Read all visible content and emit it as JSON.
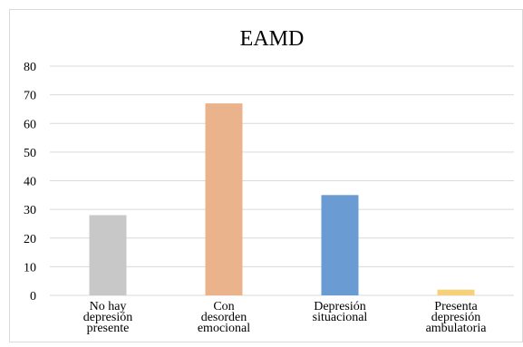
{
  "chart_data": {
    "type": "bar",
    "title": "EAMD",
    "xlabel": "",
    "ylabel": "",
    "categories": [
      [
        "No hay",
        "depresión",
        "presente"
      ],
      [
        "Con",
        "desorden",
        "emocional"
      ],
      [
        "Depresión",
        "situacional"
      ],
      [
        "Presenta",
        "depresión",
        "ambulatoria"
      ]
    ],
    "values": [
      28,
      67,
      35,
      2
    ],
    "colors": [
      "#c8c8c8",
      "#ebb38b",
      "#6a9bd3",
      "#f5d27a"
    ],
    "ylim": [
      0,
      80
    ],
    "yticks": [
      0,
      10,
      20,
      30,
      40,
      50,
      60,
      70,
      80
    ],
    "grid": true,
    "legend": "none"
  }
}
